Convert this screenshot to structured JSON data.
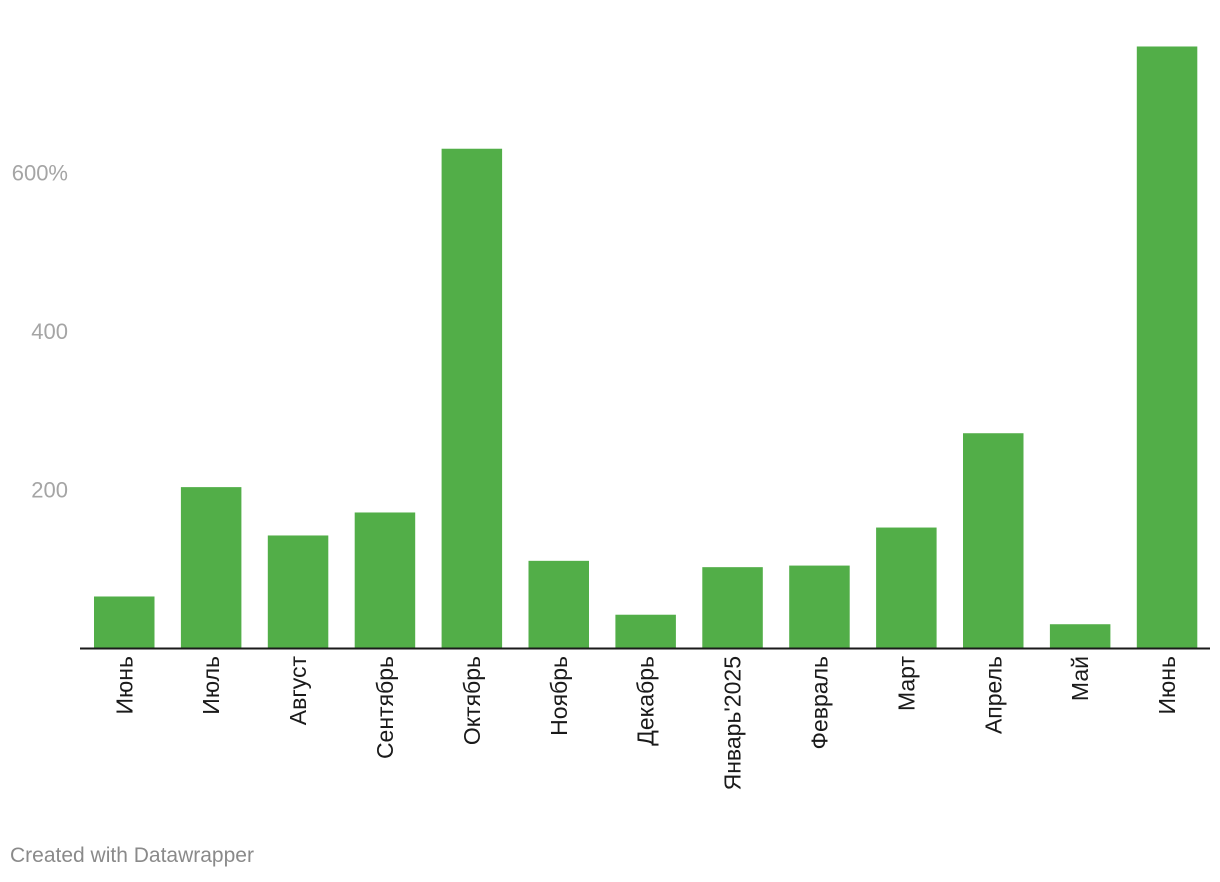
{
  "colors": {
    "bar": "#52ae48",
    "axis": "#1a1a1a",
    "tick_text": "#a5a5a5",
    "credit_text": "#8a8a8a"
  },
  "credit": "Created with Datawrapper",
  "chart_data": {
    "type": "bar",
    "title": "",
    "xlabel": "",
    "ylabel": "",
    "ylim": [
      0,
      760
    ],
    "y_ticks": [
      {
        "value": 200,
        "label": "200"
      },
      {
        "value": 400,
        "label": "400"
      },
      {
        "value": 600,
        "label": "600%"
      }
    ],
    "grid": false,
    "categories": [
      "Июнь",
      "Июль",
      "Август",
      "Сентябрь",
      "Октябрь",
      "Ноябрь",
      "Декабрь",
      "Январь'2025",
      "Февраль",
      "Март",
      "Апрель",
      "Май",
      "Июнь"
    ],
    "values": [
      65,
      203,
      142,
      171,
      630,
      110,
      42,
      102,
      104,
      152,
      271,
      30,
      759
    ]
  }
}
